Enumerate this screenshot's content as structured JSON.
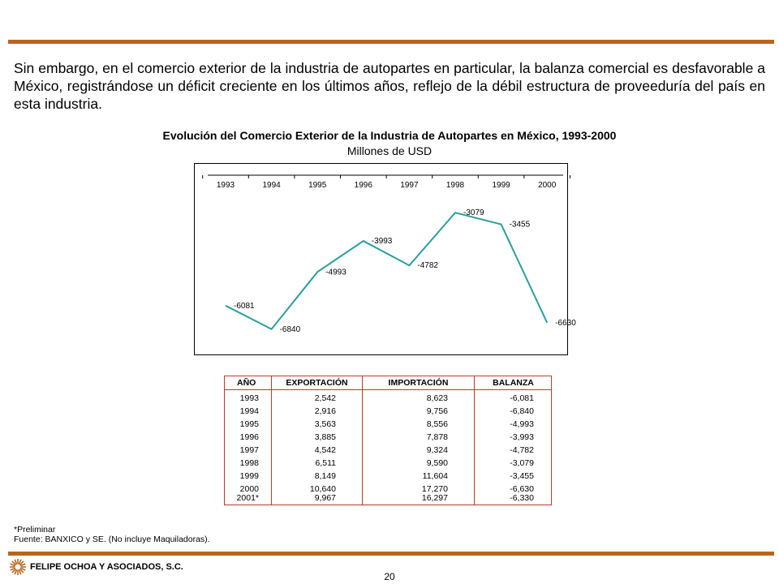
{
  "paragraph": "Sin embargo, en  el comercio exterior de la industria de autopartes en particular, la balanza comercial es desfavorable a México, registrándose un déficit creciente en los últimos años, reflejo de la débil estructura de proveeduría del país en esta industria.",
  "chart_data": {
    "type": "line",
    "title": "Evolución del Comercio Exterior de la Industria de Autopartes en México, 1993-2000",
    "subtitle": "Millones de USD",
    "x": [
      "1993",
      "1994",
      "1995",
      "1996",
      "1997",
      "1998",
      "1999",
      "2000"
    ],
    "series": [
      {
        "values": [
          -6081,
          -6840,
          -4993,
          -3993,
          -4782,
          -3079,
          -3455,
          -6630
        ]
      }
    ],
    "data_labels": [
      "-6081",
      "-6840",
      "-4993",
      "-3993",
      "-4782",
      "-3079",
      "-3455",
      "-6630"
    ],
    "ylim": [
      -7500,
      -2000
    ],
    "line_color": "#2a9d9d",
    "grid": false,
    "legend": "none"
  },
  "table": {
    "headers": [
      "AÑO",
      "EXPORTACIÓN",
      "IMPORTACIÓN",
      "BALANZA"
    ],
    "rows": [
      [
        "1993",
        "2,542",
        "8,623",
        "-6,081"
      ],
      [
        "1994",
        "2,916",
        "9,756",
        "-6,840"
      ],
      [
        "1995",
        "3,563",
        "8,556",
        "-4,993"
      ],
      [
        "1996",
        "3,885",
        "7,878",
        "-3,993"
      ],
      [
        "1997",
        "4,542",
        "9,324",
        "-4,782"
      ],
      [
        "1998",
        "6,511",
        "9,590",
        "-3,079"
      ],
      [
        "1999",
        "8,149",
        "11,604",
        "-3,455"
      ],
      [
        "2000",
        "10,640",
        "17,270",
        "-6,630"
      ],
      [
        "2001*",
        "9,967",
        "16,297",
        "-6,330"
      ]
    ],
    "border_color": "#c0392b"
  },
  "notes": {
    "line1": "*Preliminar",
    "line2": "Fuente: BANXICO y SE. (No incluye Maquiladoras)."
  },
  "footer": {
    "company": "FELIPE OCHOA Y ASOCIADOS, S.C.",
    "page_number": "20",
    "rule_color": "#b8651c",
    "logo_icon": "sunburst-logo"
  }
}
